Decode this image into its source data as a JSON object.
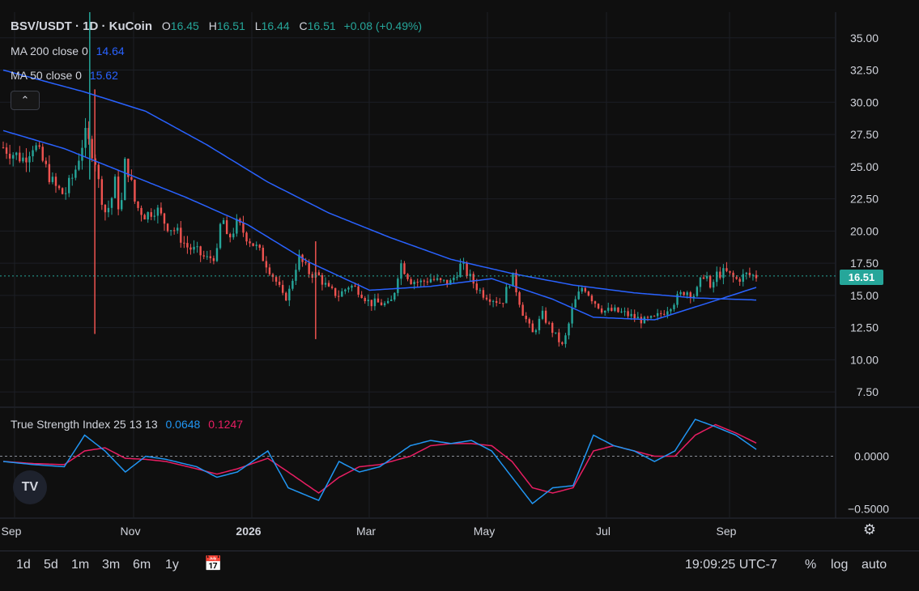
{
  "header": {
    "symbol": "BSV/USDT · 1D · KuCoin",
    "o_label": "O",
    "o_value": "16.45",
    "h_label": "H",
    "h_value": "16.51",
    "l_label": "L",
    "l_value": "16.44",
    "c_label": "C",
    "c_value": "16.51",
    "change": "+0.08 (+0.49%)",
    "ma200_label": "MA 200 close 0",
    "ma200_value": "14.64",
    "ma50_label": "MA 50 close 0",
    "ma50_value": "15.62"
  },
  "tsi": {
    "label": "True Strength Index 25 13 13",
    "tsi_value": "0.0648",
    "signal_value": "0.1247"
  },
  "current_price_tag": "16.51",
  "colors": {
    "up": "#26a69a",
    "down": "#ef5350",
    "ma200": "#2962ff",
    "ma50": "#2962ff",
    "tsi": "#2196f3",
    "signal": "#e91e63",
    "bg": "#0f0f0f"
  },
  "bottom": {
    "timeframes": [
      "1d",
      "5d",
      "1m",
      "3m",
      "6m",
      "1y"
    ],
    "clock": "19:09:25 UTC-7",
    "percent": "%",
    "log": "log",
    "auto": "auto"
  },
  "chart_data": [
    {
      "type": "candlestick",
      "price_axis_ticks": [
        "35.00",
        "32.50",
        "30.00",
        "27.50",
        "25.00",
        "22.50",
        "20.00",
        "17.50",
        "15.00",
        "12.50",
        "10.00",
        "7.50"
      ],
      "ylim": [
        6.5,
        37
      ],
      "x_axis_ticks": [
        "Sep",
        "Nov",
        "2026",
        "Mar",
        "May",
        "Jul",
        "Sep"
      ],
      "x_axis_tick_positions_month_index": [
        0,
        2,
        4,
        6,
        8,
        10,
        12
      ],
      "price_path": [
        [
          0,
          26.5
        ],
        [
          1,
          26.0
        ],
        [
          2,
          25.6
        ],
        [
          3,
          26.8
        ],
        [
          4,
          25.2
        ],
        [
          5,
          23.5
        ],
        [
          6,
          22.8
        ],
        [
          7,
          24.5
        ],
        [
          8,
          27.5
        ],
        [
          9,
          25.8
        ],
        [
          9.3,
          24
        ],
        [
          10,
          21.5
        ],
        [
          10.5,
          22
        ],
        [
          11,
          23.8
        ],
        [
          11.5,
          21
        ],
        [
          12,
          25.6
        ],
        [
          12.5,
          24
        ],
        [
          13,
          22
        ],
        [
          14,
          21.2
        ],
        [
          15,
          21.8
        ],
        [
          16,
          20.5
        ],
        [
          17,
          20.0
        ],
        [
          18,
          18.8
        ],
        [
          19,
          18.4
        ],
        [
          20,
          17.8
        ],
        [
          21,
          18.2
        ],
        [
          21.5,
          21.5
        ],
        [
          22,
          19.2
        ],
        [
          23,
          20.6
        ],
        [
          24,
          19.5
        ],
        [
          25,
          18.6
        ],
        [
          26,
          17.3
        ],
        [
          27,
          15.8
        ],
        [
          27.5,
          14.8
        ],
        [
          28,
          15.0
        ],
        [
          29,
          18.0
        ],
        [
          30,
          16.8
        ],
        [
          31,
          16.5
        ],
        [
          32,
          15.4
        ],
        [
          33,
          15.0
        ],
        [
          34,
          15.8
        ],
        [
          35,
          15.4
        ],
        [
          36,
          14.4
        ],
        [
          37,
          14.4
        ],
        [
          38,
          14.2
        ],
        [
          38.5,
          15.5
        ],
        [
          39,
          17.6
        ],
        [
          40,
          16.2
        ],
        [
          41,
          16.0
        ],
        [
          42,
          16.3
        ],
        [
          43,
          16.0
        ],
        [
          44,
          16.0
        ],
        [
          45,
          17.4
        ],
        [
          46,
          16.2
        ],
        [
          47,
          15.2
        ],
        [
          48,
          14.8
        ],
        [
          49,
          14.4
        ],
        [
          50,
          16.6
        ],
        [
          51,
          13.8
        ],
        [
          52,
          12.0
        ],
        [
          53,
          13.5
        ],
        [
          54,
          12.2
        ],
        [
          55,
          11.0
        ],
        [
          55.5,
          12.5
        ],
        [
          56,
          14.2
        ],
        [
          57,
          15.8
        ],
        [
          58,
          14.6
        ],
        [
          59,
          13.8
        ],
        [
          60,
          13.8
        ],
        [
          61,
          13.6
        ],
        [
          62,
          13.3
        ],
        [
          63,
          13.0
        ],
        [
          64,
          13.2
        ],
        [
          65,
          13.8
        ],
        [
          66,
          14.6
        ],
        [
          67,
          15.4
        ],
        [
          68,
          15.0
        ],
        [
          69,
          17.0
        ],
        [
          69.5,
          15.2
        ],
        [
          70,
          16.6
        ],
        [
          71,
          16.8
        ],
        [
          72,
          16.2
        ],
        [
          73,
          16.6
        ],
        [
          74,
          16.5
        ]
      ],
      "ma200_path": [
        [
          0,
          32.5
        ],
        [
          8,
          30.8
        ],
        [
          14,
          29.3
        ],
        [
          20,
          26.7
        ],
        [
          26,
          23.8
        ],
        [
          32,
          21.4
        ],
        [
          38,
          19.5
        ],
        [
          44,
          17.8
        ],
        [
          50,
          16.7
        ],
        [
          56,
          15.8
        ],
        [
          62,
          15.2
        ],
        [
          68,
          14.8
        ],
        [
          74,
          14.64
        ]
      ],
      "ma50_path": [
        [
          0,
          27.8
        ],
        [
          6,
          26.4
        ],
        [
          12,
          24.5
        ],
        [
          18,
          22.6
        ],
        [
          24,
          20.5
        ],
        [
          30,
          17.6
        ],
        [
          36,
          15.4
        ],
        [
          42,
          15.7
        ],
        [
          48,
          16.3
        ],
        [
          54,
          14.7
        ],
        [
          58,
          13.3
        ],
        [
          64,
          13.1
        ],
        [
          70,
          14.6
        ],
        [
          74,
          15.62
        ]
      ],
      "notable_wicks": [
        {
          "at": 8.5,
          "high": 37,
          "low": 24
        },
        {
          "at": 9,
          "high": 31,
          "low": 12
        },
        {
          "at": 30.7,
          "high": 19.2,
          "low": 11.6
        }
      ],
      "current_price": 16.51
    },
    {
      "type": "line",
      "title": "True Strength Index 25 13 13",
      "ylim": [
        -0.55,
        0.45
      ],
      "axis_ticks": [
        "0.0000",
        "−0.5000"
      ],
      "series": [
        {
          "name": "TSI",
          "values": [
            [
              0,
              -0.05
            ],
            [
              3,
              -0.08
            ],
            [
              6,
              -0.1
            ],
            [
              8,
              0.2
            ],
            [
              10,
              0.05
            ],
            [
              12,
              -0.15
            ],
            [
              14,
              0.0
            ],
            [
              16,
              -0.03
            ],
            [
              19,
              -0.1
            ],
            [
              21,
              -0.2
            ],
            [
              23,
              -0.15
            ],
            [
              26,
              0.05
            ],
            [
              28,
              -0.3
            ],
            [
              31,
              -0.42
            ],
            [
              33,
              -0.05
            ],
            [
              35,
              -0.15
            ],
            [
              37,
              -0.1
            ],
            [
              40,
              0.1
            ],
            [
              42,
              0.15
            ],
            [
              44,
              0.12
            ],
            [
              46,
              0.15
            ],
            [
              48,
              0.05
            ],
            [
              50,
              -0.2
            ],
            [
              52,
              -0.45
            ],
            [
              54,
              -0.3
            ],
            [
              56,
              -0.28
            ],
            [
              58,
              0.2
            ],
            [
              60,
              0.1
            ],
            [
              62,
              0.05
            ],
            [
              64,
              -0.05
            ],
            [
              66,
              0.05
            ],
            [
              68,
              0.35
            ],
            [
              70,
              0.28
            ],
            [
              72,
              0.2
            ],
            [
              74,
              0.0648
            ]
          ]
        },
        {
          "name": "Signal",
          "values": [
            [
              0,
              -0.05
            ],
            [
              3,
              -0.07
            ],
            [
              6,
              -0.08
            ],
            [
              8,
              0.05
            ],
            [
              10,
              0.08
            ],
            [
              12,
              -0.02
            ],
            [
              14,
              -0.03
            ],
            [
              16,
              -0.05
            ],
            [
              19,
              -0.12
            ],
            [
              21,
              -0.17
            ],
            [
              23,
              -0.12
            ],
            [
              26,
              -0.02
            ],
            [
              28,
              -0.15
            ],
            [
              31,
              -0.35
            ],
            [
              33,
              -0.2
            ],
            [
              35,
              -0.1
            ],
            [
              37,
              -0.08
            ],
            [
              40,
              0.0
            ],
            [
              42,
              0.1
            ],
            [
              44,
              0.12
            ],
            [
              46,
              0.12
            ],
            [
              48,
              0.1
            ],
            [
              50,
              -0.05
            ],
            [
              52,
              -0.3
            ],
            [
              54,
              -0.35
            ],
            [
              56,
              -0.3
            ],
            [
              58,
              0.05
            ],
            [
              60,
              0.1
            ],
            [
              62,
              0.05
            ],
            [
              64,
              0.0
            ],
            [
              66,
              0.0
            ],
            [
              68,
              0.2
            ],
            [
              70,
              0.3
            ],
            [
              72,
              0.22
            ],
            [
              74,
              0.1247
            ]
          ]
        }
      ],
      "zero_line": true
    }
  ]
}
